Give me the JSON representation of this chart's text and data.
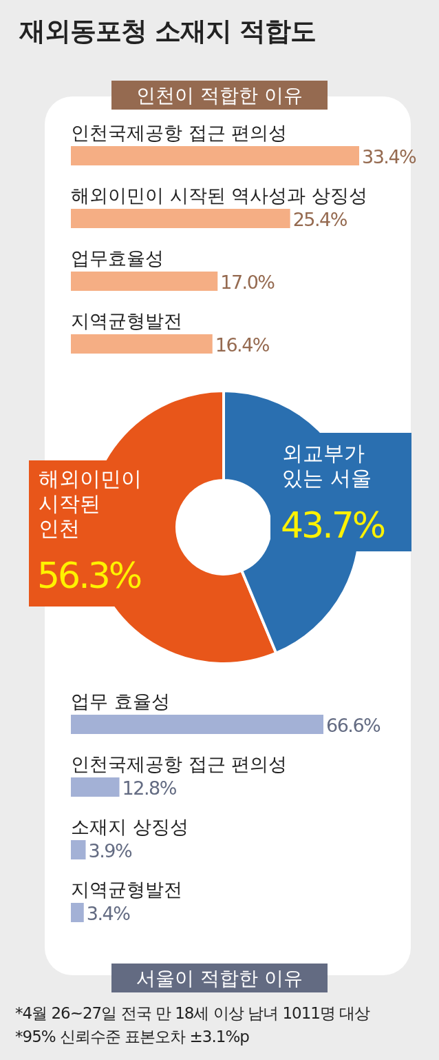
{
  "chart_data": [
    {
      "type": "bar",
      "orientation": "horizontal",
      "title": "재외동포청 소재지 적합도",
      "subtitle": "인천이 적합한 이유",
      "categories": [
        "인천국제공항 접근 편의성",
        "해외이민이 시작된 역사성과 상징성",
        "업무효율성",
        "지역균형발전"
      ],
      "values": [
        33.4,
        25.4,
        17.0,
        16.4
      ],
      "value_labels": [
        "33.4%",
        "25.4%",
        "17.0%",
        "16.4%"
      ],
      "color": "#f5ae84"
    },
    {
      "type": "donut",
      "categories": [
        "해외이민이\n시작된\n인천",
        "외교부가\n있는 서울"
      ],
      "values": [
        56.3,
        43.7
      ],
      "value_labels": [
        "56.3%",
        "43.7%"
      ],
      "colors": [
        "#e8561a",
        "#2a6fb0"
      ]
    },
    {
      "type": "bar",
      "orientation": "horizontal",
      "title": "서울이 적합한 이유",
      "categories": [
        "업무 효율성",
        "인천국제공항 접근 편의성",
        "소재지 상징성",
        "지역균형발전"
      ],
      "values": [
        66.6,
        12.8,
        3.9,
        3.4
      ],
      "value_labels": [
        "66.6%",
        "12.8%",
        "3.9%",
        "3.4%"
      ],
      "color": "#a3b1d6",
      "annotations": [
        "*4월 26~27일 전국 만 18세 이상 남녀 1011명 대상",
        "*95% 신뢰수준 표본오차 ±3.1%p"
      ]
    }
  ]
}
